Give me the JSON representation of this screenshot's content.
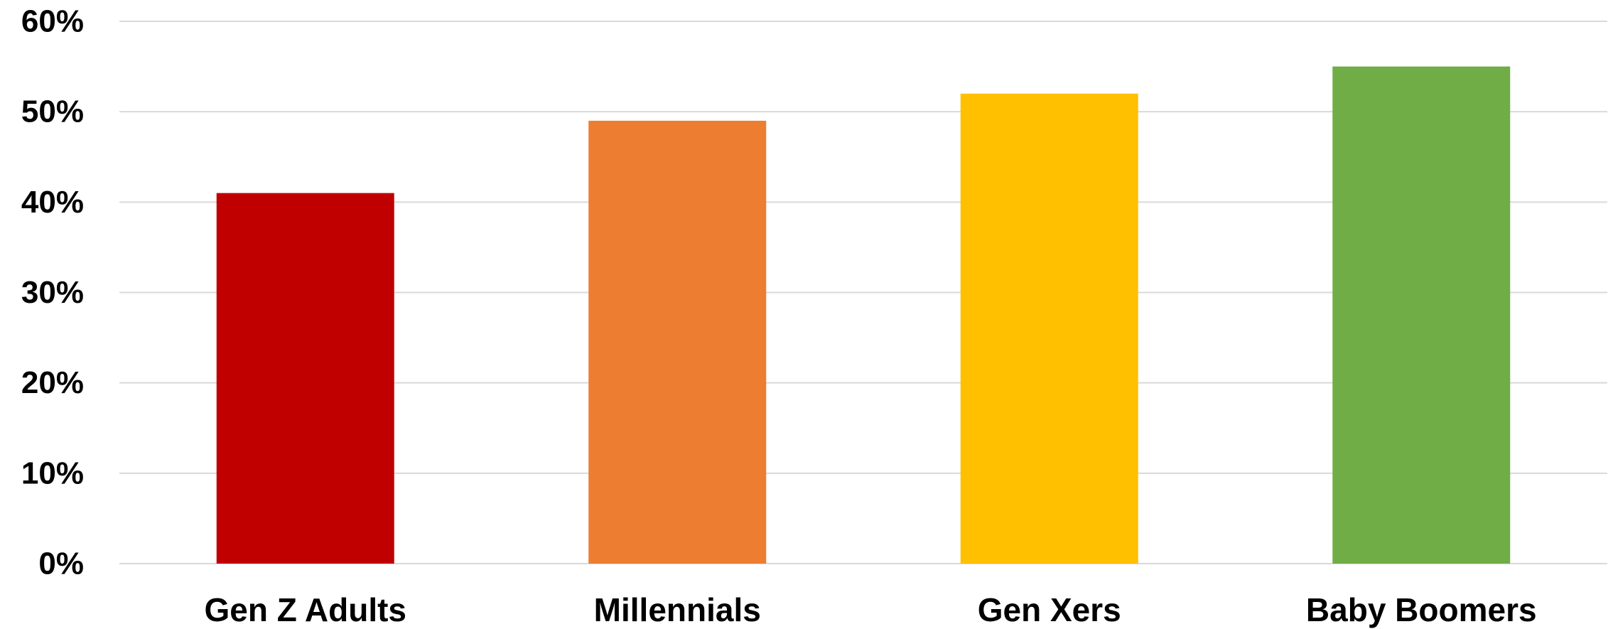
{
  "chart_data": {
    "type": "bar",
    "categories": [
      "Gen Z Adults",
      "Millennials",
      "Gen Xers",
      "Baby Boomers"
    ],
    "values": [
      41,
      49,
      52,
      55
    ],
    "colors": [
      "#c00000",
      "#ed7d31",
      "#ffc000",
      "#70ad47"
    ],
    "title": "",
    "xlabel": "",
    "ylabel": "",
    "ylim": [
      0,
      60
    ],
    "yticks": [
      0,
      10,
      20,
      30,
      40,
      50,
      60
    ],
    "ytick_suffix": "%",
    "grid": true,
    "legend": "none"
  }
}
